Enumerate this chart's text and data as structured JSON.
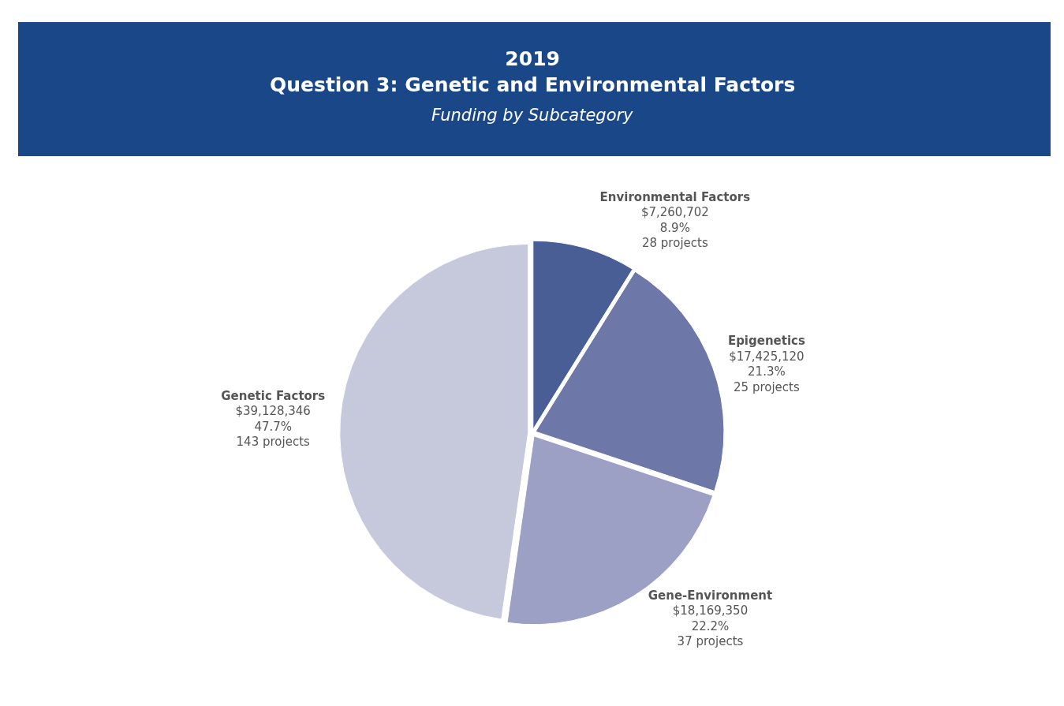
{
  "chart_data": {
    "type": "pie",
    "title": "2019\nQuestion 3: Genetic and Environmental Factors",
    "subtitle": "Funding by Subcategory",
    "categories": [
      "Environmental Factors",
      "Epigenetics",
      "Gene-Environment",
      "Genetic Factors"
    ],
    "values": [
      7260702,
      17425120,
      18169350,
      39128346
    ],
    "colors": [
      "#4a5e96",
      "#6e78a8",
      "#9da0c5",
      "#c6c8dc"
    ],
    "value_labels": [
      "$7,260,702\n8.9%\n28 projects",
      "$17,425,120\n21.3%\n25 projects",
      "$18,169,350\n22.2%\n37 projects",
      "$39,128,346\n47.7%\n143 projects"
    ],
    "legend": false
  }
}
